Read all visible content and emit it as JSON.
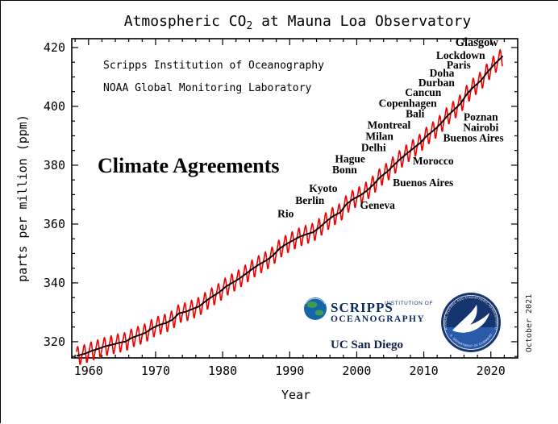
{
  "title": {
    "pre": "Atmospheric CO",
    "sub": "2",
    "post": " at Mauna Loa Observatory"
  },
  "credits": {
    "line1": "Scripps Institution of Oceanography",
    "line2": "NOAA Global Monitoring Laboratory"
  },
  "date_stamp": "October 2021",
  "chart_data": {
    "type": "line",
    "title": "Atmospheric CO2 at Mauna Loa Observatory",
    "xlabel": "Year",
    "ylabel": "parts per million (ppm)",
    "xlim": [
      1957.5,
      2024
    ],
    "ylim": [
      314.5,
      423
    ],
    "xticks": [
      1960,
      1970,
      1980,
      1990,
      2000,
      2010,
      2020
    ],
    "yticks": [
      320,
      340,
      360,
      380,
      400,
      420
    ],
    "x_minor_step": 2,
    "y_minor_step": 5,
    "grid": false,
    "legend": "none",
    "plot_range_years": [
      1958.2,
      2021.83
    ],
    "years_start": 1958,
    "series": [
      {
        "name": "monthly CO2 with seasonal cycle",
        "color": "#ee0000"
      },
      {
        "name": "annual trend",
        "color": "#000000"
      }
    ],
    "annual_mean_ppm": [
      315.34,
      315.97,
      316.91,
      317.64,
      318.45,
      318.99,
      319.62,
      320.04,
      321.37,
      322.18,
      323.05,
      324.62,
      325.68,
      326.32,
      327.46,
      329.68,
      330.19,
      331.12,
      332.03,
      333.84,
      335.41,
      336.84,
      338.76,
      340.12,
      341.48,
      343.15,
      344.87,
      346.35,
      347.61,
      349.31,
      351.69,
      353.2,
      354.45,
      355.7,
      356.54,
      357.21,
      358.96,
      360.97,
      362.74,
      363.88,
      366.84,
      368.54,
      369.71,
      371.32,
      373.45,
      375.98,
      377.7,
      379.98,
      382.09,
      384.02,
      385.83,
      387.64,
      390.1,
      391.85,
      394.06,
      396.74,
      398.81,
      401.01,
      404.41,
      406.76,
      408.72,
      411.66,
      414.24,
      416.45
    ],
    "seasonal_offsets_ppm": [
      -0.1,
      0.6,
      1.4,
      2.6,
      3.1,
      2.4,
      0.7,
      -1.4,
      -3.1,
      -3.2,
      -2.0,
      -0.9
    ]
  },
  "annotations": {
    "heading": "Climate Agreements",
    "heading_color": "#e60000",
    "default_color": "#e60000",
    "cities": [
      {
        "label": "Rio",
        "year": 1989.4,
        "ppm": 362.3
      },
      {
        "label": "Berlin",
        "year": 1993.0,
        "ppm": 366.8
      },
      {
        "label": "Kyoto",
        "year": 1995.0,
        "ppm": 371.0
      },
      {
        "label": "Geneva",
        "year": 2003.1,
        "ppm": 365.2
      },
      {
        "label": "Bonn",
        "year": 1998.2,
        "ppm": 377.2
      },
      {
        "label": "Hague",
        "year": 1999.0,
        "ppm": 381.0
      },
      {
        "label": "Delhi",
        "year": 2002.5,
        "ppm": 384.8
      },
      {
        "label": "Milan",
        "year": 2003.4,
        "ppm": 388.6
      },
      {
        "label": "Montreal",
        "year": 2004.8,
        "ppm": 392.4
      },
      {
        "label": "Buenos Aires",
        "year": 2009.9,
        "ppm": 372.8
      },
      {
        "label": "Morocco",
        "year": 2011.4,
        "ppm": 380.2
      },
      {
        "label": "Bali",
        "year": 2008.7,
        "ppm": 396.3
      },
      {
        "label": "Copenhagen",
        "year": 2007.6,
        "ppm": 399.8
      },
      {
        "label": "Cancun",
        "year": 2009.9,
        "ppm": 403.6
      },
      {
        "label": "Durban",
        "year": 2011.9,
        "ppm": 406.9
      },
      {
        "label": "Doha",
        "year": 2012.7,
        "ppm": 410.1
      },
      {
        "label": "Paris",
        "year": 2015.2,
        "ppm": 412.9
      },
      {
        "label": "Lockdown",
        "year": 2015.5,
        "ppm": 416.1
      },
      {
        "label": "Glasgow",
        "year": 2017.9,
        "ppm": 420.5,
        "color": "#0000cc",
        "size": 14.5
      },
      {
        "label": "Poznan",
        "year": 2018.5,
        "ppm": 395.2
      },
      {
        "label": "Nairobi",
        "year": 2018.5,
        "ppm": 391.6
      },
      {
        "label": "Buenos Aires",
        "year": 2017.4,
        "ppm": 388.1
      }
    ]
  },
  "logos": {
    "scripps": {
      "wordmark_large": "SCRIPPS",
      "wordmark_small": "INSTITUTION OF",
      "wordmark_line2": "OCEANOGRAPHY",
      "ucsd": "UC San Diego"
    },
    "noaa": {
      "ring_top": "NATIONAL OCEANIC AND ATMOSPHERIC ADMINISTRATION",
      "ring_bottom": "U.S. DEPARTMENT OF COMMERCE"
    }
  }
}
